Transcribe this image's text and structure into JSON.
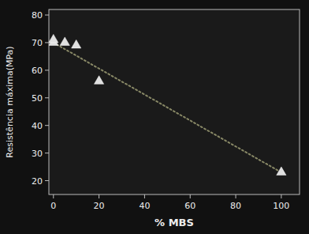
{
  "chart_data": {
    "type": "scatter",
    "xlabel": "% MBS",
    "ylabel": "Resistência máxima(MPa)",
    "series": [
      {
        "type": "line",
        "x": [
          0,
          100
        ],
        "values": [
          70,
          23
        ],
        "color": "#888866",
        "line_style": "dotted"
      },
      {
        "type": "scatter",
        "x": [
          0,
          0,
          5,
          10,
          20,
          100
        ],
        "values": [
          70,
          71,
          70,
          69,
          56,
          23
        ],
        "color": "#e0e0e0",
        "marker": "triangle"
      }
    ],
    "xlim": [
      -2,
      108
    ],
    "ylim": [
      15,
      82
    ],
    "xticks": [
      0,
      20,
      40,
      60,
      80,
      100
    ],
    "yticks": [
      20,
      30,
      40,
      50,
      60,
      70,
      80
    ],
    "grid": false
  }
}
